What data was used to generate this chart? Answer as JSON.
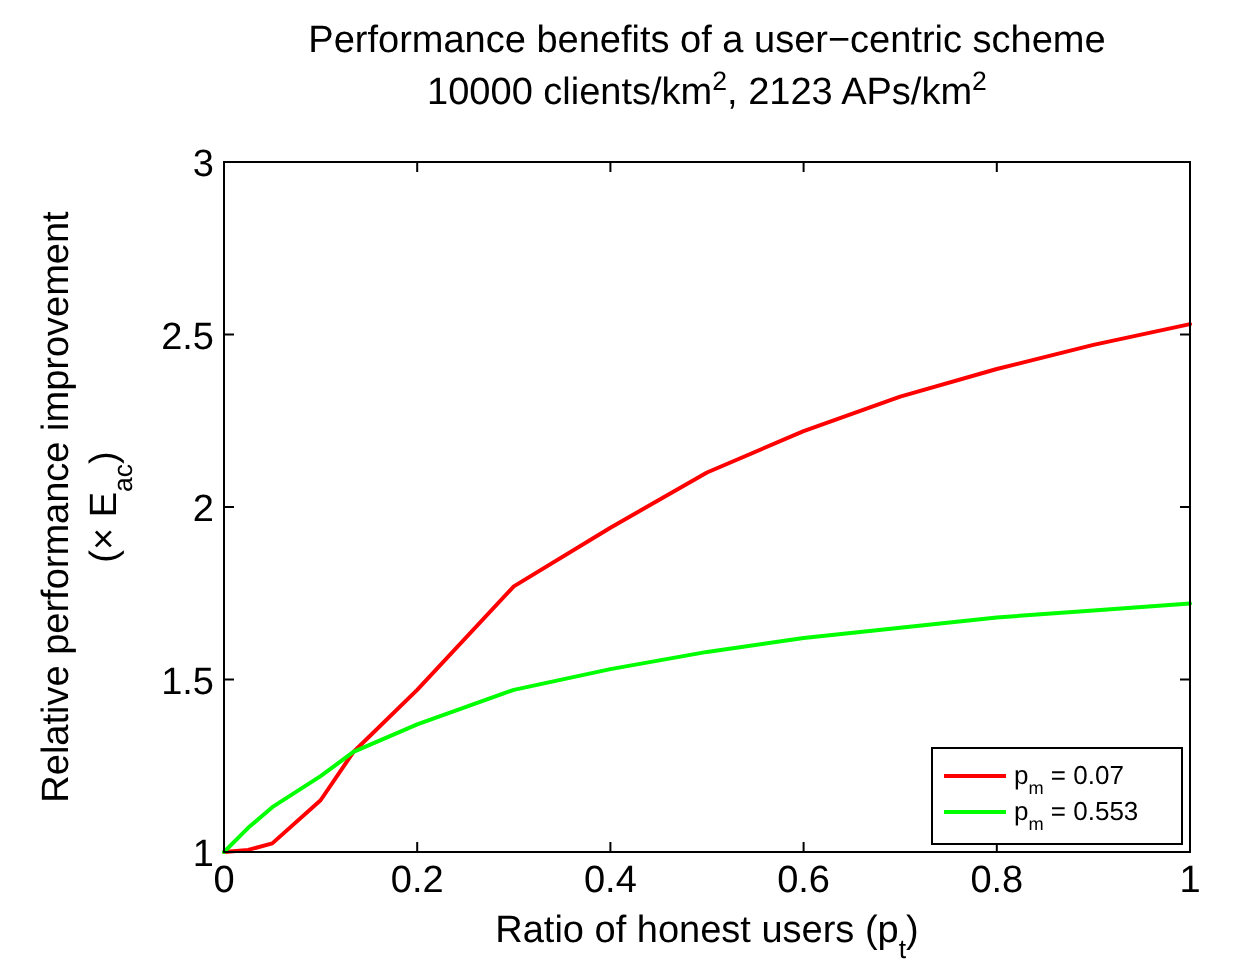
{
  "chart_data": {
    "type": "line",
    "title": "Performance benefits of a user−centric scheme",
    "subtitle": "10000 clients/km$^{2}$, 2123 APs/km$^{2}$",
    "xlabel": "Ratio of honest users (p$_{t}$)",
    "ylabel": "Relative performance improvement\n(× E$_{ac}$)",
    "x": [
      0,
      0.025,
      0.05,
      0.1,
      0.134,
      0.2,
      0.3,
      0.4,
      0.5,
      0.6,
      0.7,
      0.8,
      0.9,
      1
    ],
    "series": [
      {
        "name": "p$_{m}$ = 0.07",
        "color": "#ff0000",
        "values": [
          1,
          1.006,
          1.025,
          1.15,
          1.29,
          1.47,
          1.77,
          1.94,
          2.1,
          2.22,
          2.32,
          2.4,
          2.47,
          2.53
        ]
      },
      {
        "name": "p$_{m}$ = 0.553",
        "color": "#00ff00",
        "values": [
          1,
          1.07,
          1.13,
          1.22,
          1.29,
          1.37,
          1.47,
          1.53,
          1.58,
          1.62,
          1.65,
          1.68,
          1.7,
          1.72
        ]
      }
    ],
    "xlim": [
      0,
      1
    ],
    "xticks": [
      0,
      0.2,
      0.4,
      0.6,
      0.8,
      1
    ],
    "ylim": [
      1,
      3
    ],
    "yticks": [
      1,
      1.5,
      2,
      2.5,
      3
    ],
    "grid": false,
    "legend": "bottom right",
    "marker": "none",
    "line_style": "solid"
  }
}
